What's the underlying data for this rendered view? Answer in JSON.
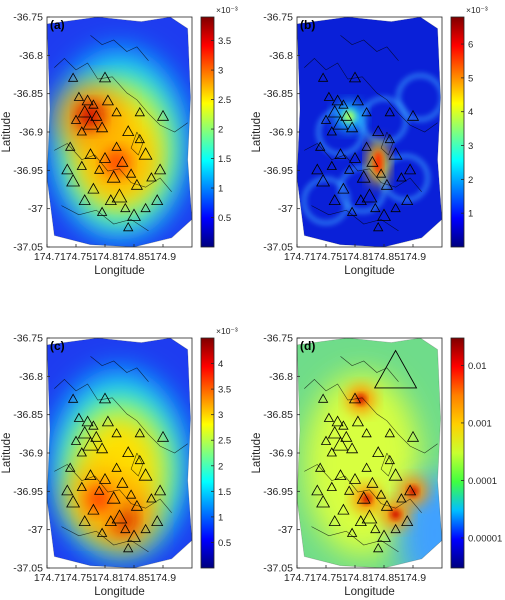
{
  "figure": {
    "colormap_jet": [
      "#00007f",
      "#0000ff",
      "#007fff",
      "#00ffff",
      "#7fff7f",
      "#ffff00",
      "#ff7f00",
      "#ff0000",
      "#7f0000"
    ],
    "colormap_d": [
      "#00007f",
      "#0000ff",
      "#00bfff",
      "#40ff40",
      "#c8ff30",
      "#ffd000",
      "#ff8000",
      "#ff0000",
      "#7f0000"
    ]
  },
  "chart_data": [
    {
      "panel_label": "(a)",
      "type": "heatmap",
      "xlabel": "Longitude",
      "ylabel": "Latitude",
      "xlim": [
        174.7,
        174.95
      ],
      "ylim": [
        -37.05,
        -36.75
      ],
      "x_ticks": [
        "174.7",
        "174.75",
        "174.8",
        "174.85",
        "174.9"
      ],
      "y_ticks": [
        "-36.75",
        "-36.8",
        "-36.85",
        "-36.9",
        "-36.95",
        "-37",
        "-37.05"
      ],
      "colorbar": {
        "exponent_label": "×10⁻³",
        "ticks": [
          "0.5",
          "1",
          "1.5",
          "2",
          "2.5",
          "3",
          "3.5"
        ],
        "range": [
          0,
          3.9
        ]
      },
      "hotspots": [
        {
          "lon": 174.775,
          "lat": -36.88,
          "value": 3.9
        },
        {
          "lon": 174.82,
          "lat": -36.94,
          "value": 3.0
        }
      ]
    },
    {
      "panel_label": "(b)",
      "type": "heatmap",
      "xlabel": "Longitude",
      "ylabel": "Latitude",
      "xlim": [
        174.7,
        174.95
      ],
      "ylim": [
        -37.05,
        -36.75
      ],
      "x_ticks": [
        "174.7",
        "174.75",
        "174.8",
        "174.85",
        "174.9"
      ],
      "y_ticks": [
        "-36.75",
        "-36.8",
        "-36.85",
        "-36.9",
        "-36.95",
        "-37",
        "-37.05"
      ],
      "colorbar": {
        "exponent_label": "×10⁻³",
        "ticks": [
          "1",
          "2",
          "3",
          "4",
          "5",
          "6"
        ],
        "range": [
          0,
          6.8
        ]
      },
      "hotspots": [
        {
          "lon": 174.84,
          "lat": -36.94,
          "value": 6.5
        },
        {
          "lon": 174.79,
          "lat": -36.88,
          "value": 3.5
        }
      ]
    },
    {
      "panel_label": "(c)",
      "type": "heatmap",
      "xlabel": "Longitude",
      "ylabel": "Latitude",
      "xlim": [
        174.7,
        174.95
      ],
      "ylim": [
        -37.05,
        -36.75
      ],
      "x_ticks": [
        "174.7",
        "174.75",
        "174.8",
        "174.85",
        "174.9"
      ],
      "y_ticks": [
        "-36.75",
        "-36.8",
        "-36.85",
        "-36.9",
        "-36.95",
        "-37",
        "-37.05"
      ],
      "colorbar": {
        "exponent_label": "×10⁻³",
        "ticks": [
          "0.5",
          "1",
          "1.5",
          "2",
          "2.5",
          "3",
          "3.5",
          "4"
        ],
        "range": [
          0,
          4.5
        ]
      },
      "hotspots": [
        {
          "lon": 174.83,
          "lat": -36.985,
          "value": 4.5
        },
        {
          "lon": 174.79,
          "lat": -36.96,
          "value": 3.2
        }
      ]
    },
    {
      "panel_label": "(d)",
      "type": "heatmap",
      "xlabel": "Longitude",
      "ylabel": "Latitude",
      "xlim": [
        174.7,
        174.95
      ],
      "ylim": [
        -37.05,
        -36.75
      ],
      "x_ticks": [
        "174.7",
        "174.75",
        "174.8",
        "174.85",
        "174.9"
      ],
      "y_ticks": [
        "-36.75",
        "-36.8",
        "-36.85",
        "-36.9",
        "-36.95",
        "-37",
        "-37.05"
      ],
      "colorbar": {
        "scale": "log",
        "ticks": [
          "0.01",
          "0.001",
          "0.0001",
          "0.00001"
        ],
        "range": [
          3e-06,
          0.03
        ]
      },
      "hotspots": [
        {
          "lon": 174.81,
          "lat": -36.83,
          "value": 0.02
        },
        {
          "lon": 174.82,
          "lat": -36.96,
          "value": 0.02
        },
        {
          "lon": 174.87,
          "lat": -36.98,
          "value": 0.02
        },
        {
          "lon": 174.9,
          "lat": -36.95,
          "value": 0.02
        }
      ]
    }
  ],
  "stations": [
    {
      "lon": 174.755,
      "lat": -36.855
    },
    {
      "lon": 174.77,
      "lat": -36.86
    },
    {
      "lon": 174.78,
      "lat": -36.865
    },
    {
      "lon": 174.765,
      "lat": -36.875
    },
    {
      "lon": 174.785,
      "lat": -36.88
    },
    {
      "lon": 174.75,
      "lat": -36.885
    },
    {
      "lon": 174.775,
      "lat": -36.89
    },
    {
      "lon": 174.795,
      "lat": -36.895
    },
    {
      "lon": 174.76,
      "lat": -36.9
    },
    {
      "lon": 174.805,
      "lat": -36.86
    },
    {
      "lon": 174.74,
      "lat": -36.92
    },
    {
      "lon": 174.735,
      "lat": -36.95
    },
    {
      "lon": 174.745,
      "lat": -36.965
    },
    {
      "lon": 174.76,
      "lat": -36.945
    },
    {
      "lon": 174.775,
      "lat": -36.93
    },
    {
      "lon": 174.79,
      "lat": -36.95
    },
    {
      "lon": 174.8,
      "lat": -36.935
    },
    {
      "lon": 174.815,
      "lat": -36.96
    },
    {
      "lon": 174.82,
      "lat": -36.92
    },
    {
      "lon": 174.83,
      "lat": -36.94
    },
    {
      "lon": 174.845,
      "lat": -36.955
    },
    {
      "lon": 174.84,
      "lat": -36.9
    },
    {
      "lon": 174.86,
      "lat": -36.91
    },
    {
      "lon": 174.87,
      "lat": -36.93
    },
    {
      "lon": 174.855,
      "lat": -36.97
    },
    {
      "lon": 174.88,
      "lat": -36.96
    },
    {
      "lon": 174.895,
      "lat": -36.95
    },
    {
      "lon": 174.825,
      "lat": -36.985
    },
    {
      "lon": 174.81,
      "lat": -36.99
    },
    {
      "lon": 174.835,
      "lat": -37.0
    },
    {
      "lon": 174.85,
      "lat": -37.01
    },
    {
      "lon": 174.795,
      "lat": -37.005
    },
    {
      "lon": 174.78,
      "lat": -36.975
    },
    {
      "lon": 174.765,
      "lat": -36.99
    },
    {
      "lon": 174.87,
      "lat": -37.0
    },
    {
      "lon": 174.89,
      "lat": -36.99
    },
    {
      "lon": 174.745,
      "lat": -36.83
    },
    {
      "lon": 174.8,
      "lat": -36.83
    },
    {
      "lon": 174.86,
      "lat": -36.875
    },
    {
      "lon": 174.82,
      "lat": -36.875
    },
    {
      "lon": 174.9,
      "lat": -36.88
    },
    {
      "lon": 174.84,
      "lat": -37.025
    }
  ]
}
